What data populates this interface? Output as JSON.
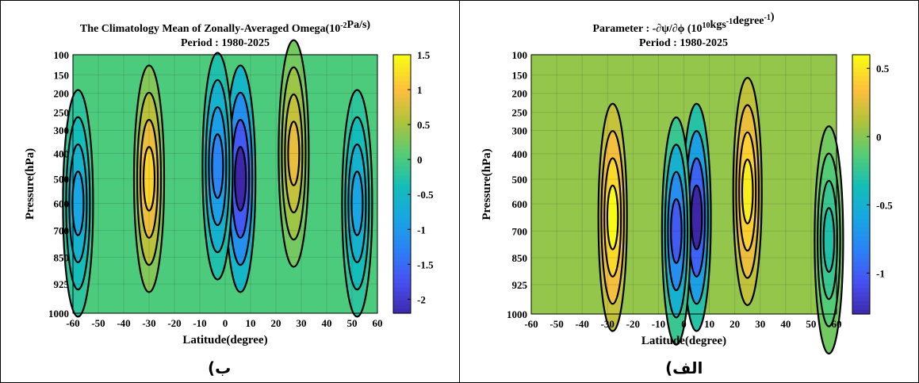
{
  "panels": {
    "left_label": "(ب",
    "right_label": "(الف"
  },
  "chart_data": [
    {
      "type": "contour",
      "title": "The Climatology Mean of Zonally-Averaged Omega(10",
      "title_sup": "-2",
      "title_tail": "Pa/s)",
      "subtitle": "Period : 1980-2025",
      "xlabel": "Latitude(degree)",
      "ylabel": "Pressure(hPa)",
      "x_ticks": [
        -60,
        -50,
        -40,
        -30,
        -20,
        -10,
        0,
        10,
        20,
        30,
        40,
        50,
        60
      ],
      "y_ticks": [
        100,
        150,
        200,
        250,
        300,
        400,
        500,
        600,
        700,
        850,
        925,
        1000
      ],
      "xlim": [
        -60,
        60
      ],
      "colorbar": {
        "ticks": [
          1.5,
          1,
          0.5,
          0,
          -0.5,
          -1,
          -1.5,
          -2
        ],
        "range": [
          -2.2,
          1.5
        ],
        "colormap": "parula"
      },
      "field_features": [
        {
          "lat": -30,
          "pressure": 500,
          "value": 1.2
        },
        {
          "lat": 27,
          "pressure": 400,
          "value": 0.9
        },
        {
          "lat": 6,
          "pressure": 500,
          "value": -2.2
        },
        {
          "lat": -3,
          "pressure": 450,
          "value": -1.2
        },
        {
          "lat": 52,
          "pressure": 600,
          "value": -0.8
        },
        {
          "lat": -58,
          "pressure": 600,
          "value": -0.8
        }
      ],
      "grid": true
    },
    {
      "type": "contour",
      "title": "Parameter : -∂ψ/∂ϕ (10",
      "title_sup": "10",
      "title_tail": "kgs",
      "title_sup2": "-1",
      "title_tail2": "degree",
      "title_sup3": "-1",
      "title_tail3": ")",
      "subtitle": "Period : 1980-2025",
      "xlabel": "Latitude(degree)",
      "ylabel": "Pressure(hPa)",
      "x_ticks": [
        -60,
        -50,
        -40,
        -30,
        -20,
        -10,
        0,
        10,
        20,
        30,
        40,
        50,
        60
      ],
      "y_ticks": [
        100,
        150,
        200,
        250,
        300,
        400,
        500,
        600,
        700,
        850,
        925,
        1000
      ],
      "xlim": [
        -60,
        60
      ],
      "colorbar": {
        "ticks": [
          0.5,
          0,
          -0.5,
          -1
        ],
        "range": [
          -1.3,
          0.6
        ],
        "colormap": "parula"
      },
      "field_features": [
        {
          "lat": -28,
          "pressure": 650,
          "value": 0.6
        },
        {
          "lat": 25,
          "pressure": 550,
          "value": 0.55
        },
        {
          "lat": 5,
          "pressure": 650,
          "value": -1.3
        },
        {
          "lat": -3,
          "pressure": 700,
          "value": -1.0
        },
        {
          "lat": 57,
          "pressure": 750,
          "value": -0.3
        }
      ],
      "grid": true
    }
  ]
}
